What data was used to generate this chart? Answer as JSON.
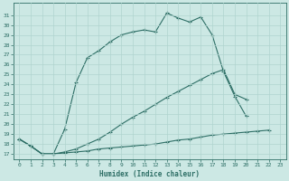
{
  "xlabel": "Humidex (Indice chaleur)",
  "bg_color": "#cce8e4",
  "line_color": "#2d6e65",
  "grid_color": "#b0d4cf",
  "xlim": [
    -0.5,
    23.5
  ],
  "ylim": [
    16.5,
    32.2
  ],
  "xticks": [
    0,
    1,
    2,
    3,
    4,
    5,
    6,
    7,
    8,
    9,
    10,
    11,
    12,
    13,
    14,
    15,
    16,
    17,
    18,
    19,
    20,
    21,
    22,
    23
  ],
  "yticks": [
    17,
    18,
    19,
    20,
    21,
    22,
    23,
    24,
    25,
    26,
    27,
    28,
    29,
    30,
    31
  ],
  "line1_x": [
    0,
    1,
    2,
    3,
    4,
    5,
    6,
    7,
    8,
    9,
    10,
    11,
    12,
    13,
    14,
    15,
    16,
    17,
    18,
    19,
    20,
    21,
    22
  ],
  "line1_y": [
    18.5,
    17.8,
    17.0,
    17.0,
    19.5,
    24.2,
    26.7,
    27.4,
    28.3,
    29.0,
    29.3,
    29.5,
    29.3,
    31.2,
    30.7,
    30.3,
    30.8,
    29.0,
    25.3,
    22.8,
    20.8,
    null,
    null
  ],
  "line2_x": [
    0,
    1,
    2,
    3,
    4,
    5,
    6,
    7,
    8,
    9,
    10,
    11,
    12,
    13,
    14,
    15,
    16,
    17,
    18,
    19,
    20,
    21,
    22
  ],
  "line2_y": [
    18.5,
    17.8,
    17.0,
    17.0,
    17.2,
    17.5,
    18.0,
    18.5,
    19.2,
    20.0,
    20.7,
    21.3,
    22.0,
    22.7,
    23.3,
    23.9,
    24.5,
    25.1,
    25.5,
    23.0,
    22.5,
    null,
    null
  ],
  "line3_x": [
    0,
    1,
    2,
    3,
    4,
    5,
    6,
    7,
    8,
    9,
    10,
    11,
    12,
    13,
    14,
    15,
    16,
    17,
    18,
    19,
    20,
    21,
    22
  ],
  "line3_y": [
    18.5,
    17.8,
    17.0,
    17.0,
    17.1,
    17.2,
    17.3,
    17.5,
    17.6,
    17.7,
    17.8,
    17.9,
    18.0,
    18.2,
    18.4,
    18.5,
    18.7,
    18.9,
    19.0,
    19.1,
    19.2,
    19.3,
    19.4
  ]
}
